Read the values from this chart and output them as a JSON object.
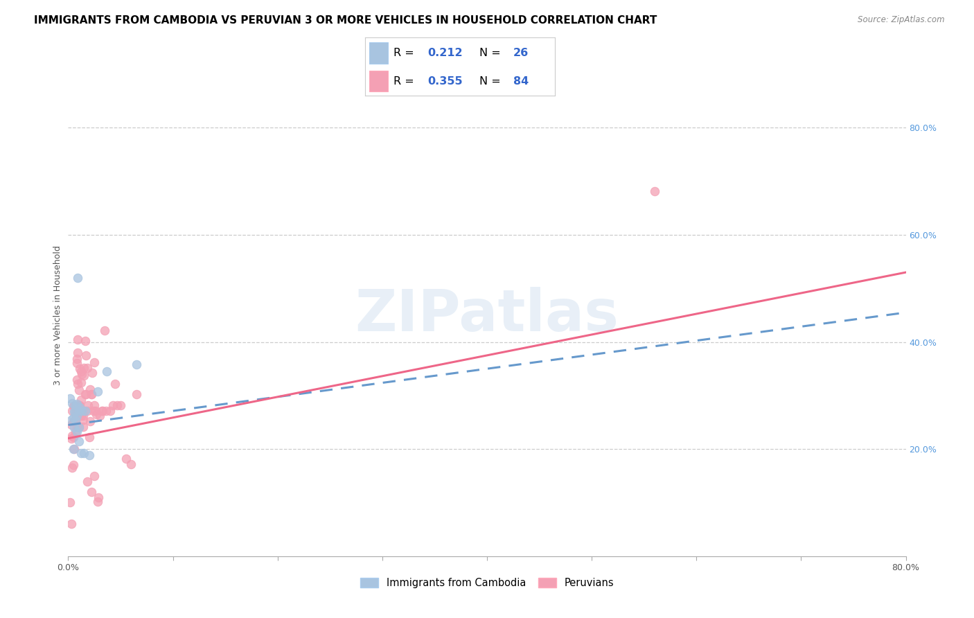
{
  "title": "IMMIGRANTS FROM CAMBODIA VS PERUVIAN 3 OR MORE VEHICLES IN HOUSEHOLD CORRELATION CHART",
  "source": "Source: ZipAtlas.com",
  "ylabel": "3 or more Vehicles in Household",
  "legend_label1": "Immigrants from Cambodia",
  "legend_label2": "Peruvians",
  "R1": 0.212,
  "N1": 26,
  "R2": 0.355,
  "N2": 84,
  "color_cambodia": "#a8c4e0",
  "color_peru": "#f4a0b4",
  "color_cambodia_line": "#6699cc",
  "color_peru_line": "#ee6688",
  "watermark": "ZIPatlas",
  "cambodia_x": [
    0.002,
    0.003,
    0.004,
    0.005,
    0.005,
    0.006,
    0.006,
    0.007,
    0.007,
    0.007,
    0.008,
    0.008,
    0.008,
    0.009,
    0.01,
    0.01,
    0.01,
    0.011,
    0.012,
    0.013,
    0.015,
    0.016,
    0.02,
    0.028,
    0.037,
    0.065
  ],
  "cambodia_y": [
    0.295,
    0.255,
    0.285,
    0.258,
    0.2,
    0.24,
    0.27,
    0.255,
    0.27,
    0.282,
    0.232,
    0.262,
    0.284,
    0.52,
    0.215,
    0.24,
    0.272,
    0.278,
    0.192,
    0.272,
    0.192,
    0.272,
    0.188,
    0.308,
    0.345,
    0.358
  ],
  "peru_x": [
    0.002,
    0.003,
    0.003,
    0.004,
    0.004,
    0.005,
    0.005,
    0.005,
    0.006,
    0.006,
    0.006,
    0.007,
    0.007,
    0.007,
    0.008,
    0.008,
    0.008,
    0.008,
    0.009,
    0.009,
    0.009,
    0.01,
    0.01,
    0.01,
    0.011,
    0.011,
    0.011,
    0.012,
    0.012,
    0.012,
    0.013,
    0.013,
    0.013,
    0.014,
    0.014,
    0.015,
    0.015,
    0.016,
    0.016,
    0.017,
    0.017,
    0.018,
    0.018,
    0.019,
    0.02,
    0.021,
    0.021,
    0.022,
    0.022,
    0.023,
    0.024,
    0.025,
    0.025,
    0.026,
    0.027,
    0.028,
    0.029,
    0.03,
    0.032,
    0.033,
    0.035,
    0.036,
    0.04,
    0.043,
    0.045,
    0.047,
    0.05,
    0.055,
    0.06,
    0.065,
    0.003,
    0.004,
    0.005,
    0.007,
    0.008,
    0.009,
    0.01,
    0.012,
    0.014,
    0.015,
    0.018,
    0.022,
    0.025,
    0.56
  ],
  "peru_y": [
    0.1,
    0.06,
    0.245,
    0.225,
    0.272,
    0.222,
    0.252,
    0.28,
    0.2,
    0.252,
    0.28,
    0.232,
    0.252,
    0.28,
    0.242,
    0.272,
    0.33,
    0.36,
    0.282,
    0.322,
    0.38,
    0.242,
    0.272,
    0.31,
    0.272,
    0.282,
    0.35,
    0.262,
    0.292,
    0.325,
    0.272,
    0.34,
    0.265,
    0.242,
    0.262,
    0.272,
    0.352,
    0.302,
    0.402,
    0.302,
    0.375,
    0.272,
    0.352,
    0.282,
    0.222,
    0.252,
    0.312,
    0.302,
    0.302,
    0.342,
    0.272,
    0.282,
    0.362,
    0.272,
    0.265,
    0.102,
    0.11,
    0.262,
    0.272,
    0.272,
    0.422,
    0.272,
    0.272,
    0.282,
    0.322,
    0.282,
    0.282,
    0.182,
    0.172,
    0.302,
    0.22,
    0.165,
    0.17,
    0.265,
    0.368,
    0.405,
    0.282,
    0.345,
    0.255,
    0.338,
    0.14,
    0.12,
    0.15,
    0.682
  ],
  "xmin": 0.0,
  "xmax": 0.8,
  "ymin": 0.0,
  "ymax": 0.9,
  "cam_line_x0": 0.0,
  "cam_line_x1": 0.8,
  "cam_line_y0": 0.245,
  "cam_line_y1": 0.455,
  "peru_line_x0": 0.0,
  "peru_line_x1": 0.8,
  "peru_line_y0": 0.22,
  "peru_line_y1": 0.53,
  "ytick_vals": [
    0.2,
    0.4,
    0.6,
    0.8
  ],
  "ytick_labels": [
    "20.0%",
    "40.0%",
    "60.0%",
    "80.0%"
  ],
  "xtick_vals": [
    0.0,
    0.1,
    0.2,
    0.3,
    0.4,
    0.5,
    0.6,
    0.7,
    0.8
  ],
  "xtick_labels": [
    "0.0%",
    "",
    "",
    "",
    "",
    "",
    "",
    "",
    "80.0%"
  ],
  "title_fontsize": 11,
  "label_fontsize": 9,
  "tick_color": "#555555",
  "right_tick_color": "#5599dd",
  "grid_color": "#cccccc",
  "spine_color": "#aaaaaa",
  "source_color": "#888888",
  "watermark_color": "#ccddef"
}
